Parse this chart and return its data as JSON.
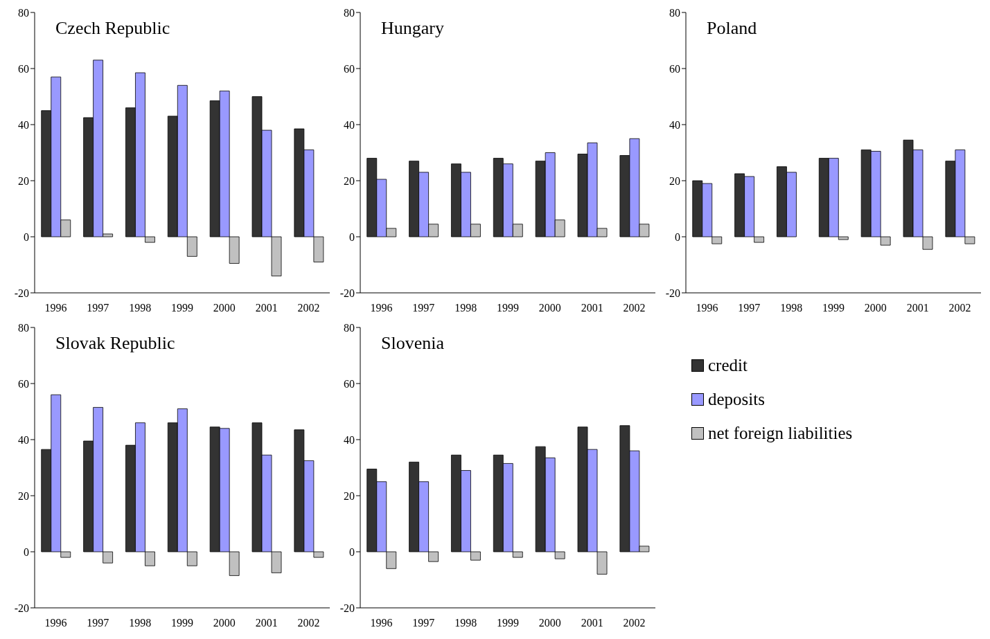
{
  "chart_data": [
    {
      "type": "bar",
      "title": "Czech Republic",
      "categories": [
        "1996",
        "1997",
        "1998",
        "1999",
        "2000",
        "2001",
        "2002"
      ],
      "ylim": [
        -20,
        80
      ],
      "yticks": [
        -20,
        0,
        20,
        40,
        60,
        80
      ],
      "grid": false,
      "series": [
        {
          "color": "#333333",
          "values": [
            45,
            42.5,
            46,
            43,
            48.5,
            50,
            38.5
          ]
        },
        {
          "color": "#9999ff",
          "values": [
            57,
            63,
            58.5,
            54,
            52,
            38,
            31
          ]
        },
        {
          "color": "#c0c0c0",
          "values": [
            6,
            1,
            -2,
            -7,
            -9.5,
            -14,
            -9
          ]
        }
      ]
    },
    {
      "type": "bar",
      "title": "Hungary",
      "categories": [
        "1996",
        "1997",
        "1998",
        "1999",
        "2000",
        "2001",
        "2002"
      ],
      "ylim": [
        -20,
        80
      ],
      "yticks": [
        -20,
        0,
        20,
        40,
        60,
        80
      ],
      "grid": false,
      "series": [
        {
          "color": "#333333",
          "values": [
            28,
            27,
            26,
            28,
            27,
            29.5,
            29
          ]
        },
        {
          "color": "#9999ff",
          "values": [
            20.5,
            23,
            23,
            26,
            30,
            33.5,
            35
          ]
        },
        {
          "color": "#c0c0c0",
          "values": [
            3,
            4.5,
            4.5,
            4.5,
            6,
            3,
            4.5
          ]
        }
      ]
    },
    {
      "type": "bar",
      "title": "Poland",
      "categories": [
        "1996",
        "1997",
        "1998",
        "1999",
        "2000",
        "2001",
        "2002"
      ],
      "ylim": [
        -20,
        80
      ],
      "yticks": [
        -20,
        0,
        20,
        40,
        60,
        80
      ],
      "grid": false,
      "series": [
        {
          "color": "#333333",
          "values": [
            20,
            22.5,
            25,
            28,
            31,
            34.5,
            27
          ]
        },
        {
          "color": "#9999ff",
          "values": [
            19,
            21.5,
            23,
            28,
            30.5,
            31,
            31
          ]
        },
        {
          "color": "#c0c0c0",
          "values": [
            -2.5,
            -2,
            0,
            -1,
            -3,
            -4.5,
            -2.5
          ]
        }
      ]
    },
    {
      "type": "bar",
      "title": "Slovak Republic",
      "categories": [
        "1996",
        "1997",
        "1998",
        "1999",
        "2000",
        "2001",
        "2002"
      ],
      "ylim": [
        -20,
        80
      ],
      "yticks": [
        -20,
        0,
        20,
        40,
        60,
        80
      ],
      "grid": false,
      "series": [
        {
          "color": "#333333",
          "values": [
            36.5,
            39.5,
            38,
            46,
            44.5,
            46,
            43.5
          ]
        },
        {
          "color": "#9999ff",
          "values": [
            56,
            51.5,
            46,
            51,
            44,
            34.5,
            32.5
          ]
        },
        {
          "color": "#c0c0c0",
          "values": [
            -2,
            -4,
            -5,
            -5,
            -8.5,
            -7.5,
            -2
          ]
        }
      ]
    },
    {
      "type": "bar",
      "title": "Slovenia",
      "categories": [
        "1996",
        "1997",
        "1998",
        "1999",
        "2000",
        "2001",
        "2002"
      ],
      "ylim": [
        -20,
        80
      ],
      "yticks": [
        -20,
        0,
        20,
        40,
        60,
        80
      ],
      "grid": false,
      "legend": "right",
      "series": [
        {
          "name": "credit",
          "color": "#333333",
          "values": [
            29.5,
            32,
            34.5,
            34.5,
            37.5,
            44.5,
            45
          ]
        },
        {
          "name": "deposits",
          "color": "#9999ff",
          "values": [
            25,
            25,
            29,
            31.5,
            33.5,
            36.5,
            36
          ]
        },
        {
          "name": "net foreign liabilities",
          "color": "#c0c0c0",
          "values": [
            -6,
            -3.5,
            -3,
            -2,
            -2.5,
            -8,
            2
          ]
        }
      ]
    }
  ]
}
